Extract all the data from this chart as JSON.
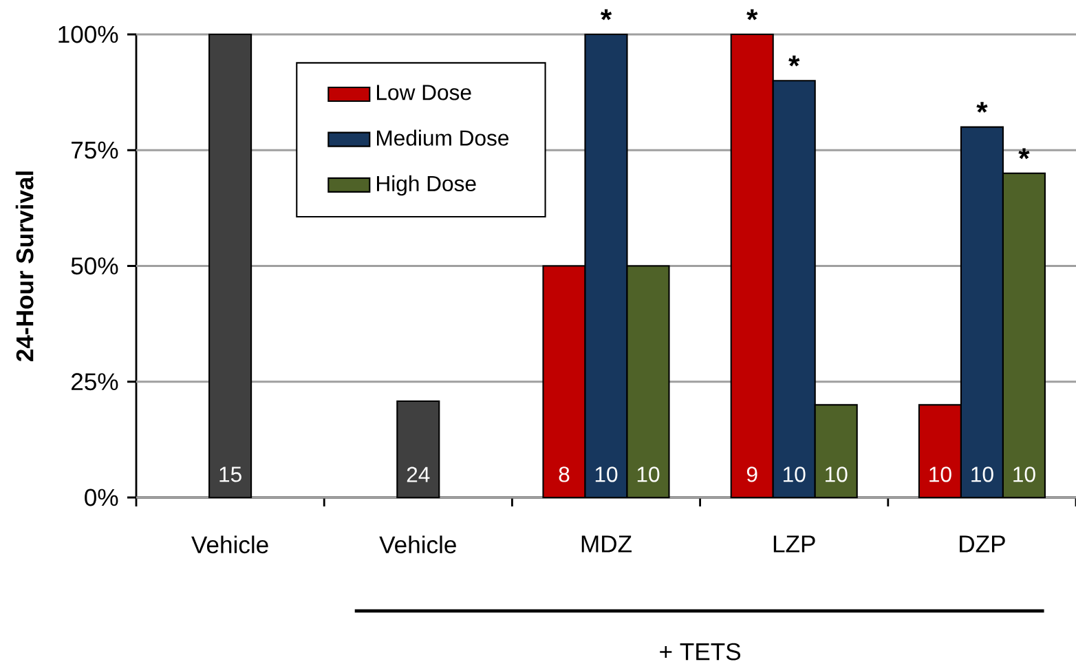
{
  "chart_data": {
    "type": "bar",
    "ylabel": "24-Hour Survival",
    "categories": [
      "Vehicle",
      "Vehicle",
      "MDZ",
      "LZP",
      "DZP"
    ],
    "series": [
      {
        "color": "#404040",
        "values": [
          100,
          20.8,
          null,
          null,
          null
        ]
      },
      {
        "name": "Low Dose",
        "color": "#c00000",
        "values": [
          null,
          null,
          50,
          100,
          20
        ]
      },
      {
        "name": "Medium Dose",
        "color": "#17375e",
        "values": [
          null,
          null,
          100,
          90,
          80
        ]
      },
      {
        "name": "High Dose",
        "color": "#4f6228",
        "values": [
          null,
          null,
          50,
          20,
          70
        ]
      }
    ],
    "ylim": [
      0,
      100
    ],
    "yticks": [
      {
        "value": 0,
        "label": "0%"
      },
      {
        "value": 25,
        "label": "25%"
      },
      {
        "value": 50,
        "label": "50%"
      },
      {
        "value": 75,
        "label": "75%"
      },
      {
        "value": 100,
        "label": "100%"
      }
    ],
    "grid": "y",
    "legend": "top left",
    "annotations": [
      "15",
      "24",
      "8",
      "10",
      "10",
      "9",
      "10",
      "10",
      "10",
      "10",
      "10",
      "*",
      "*",
      "*",
      "*",
      "*",
      "+ TETS"
    ]
  }
}
